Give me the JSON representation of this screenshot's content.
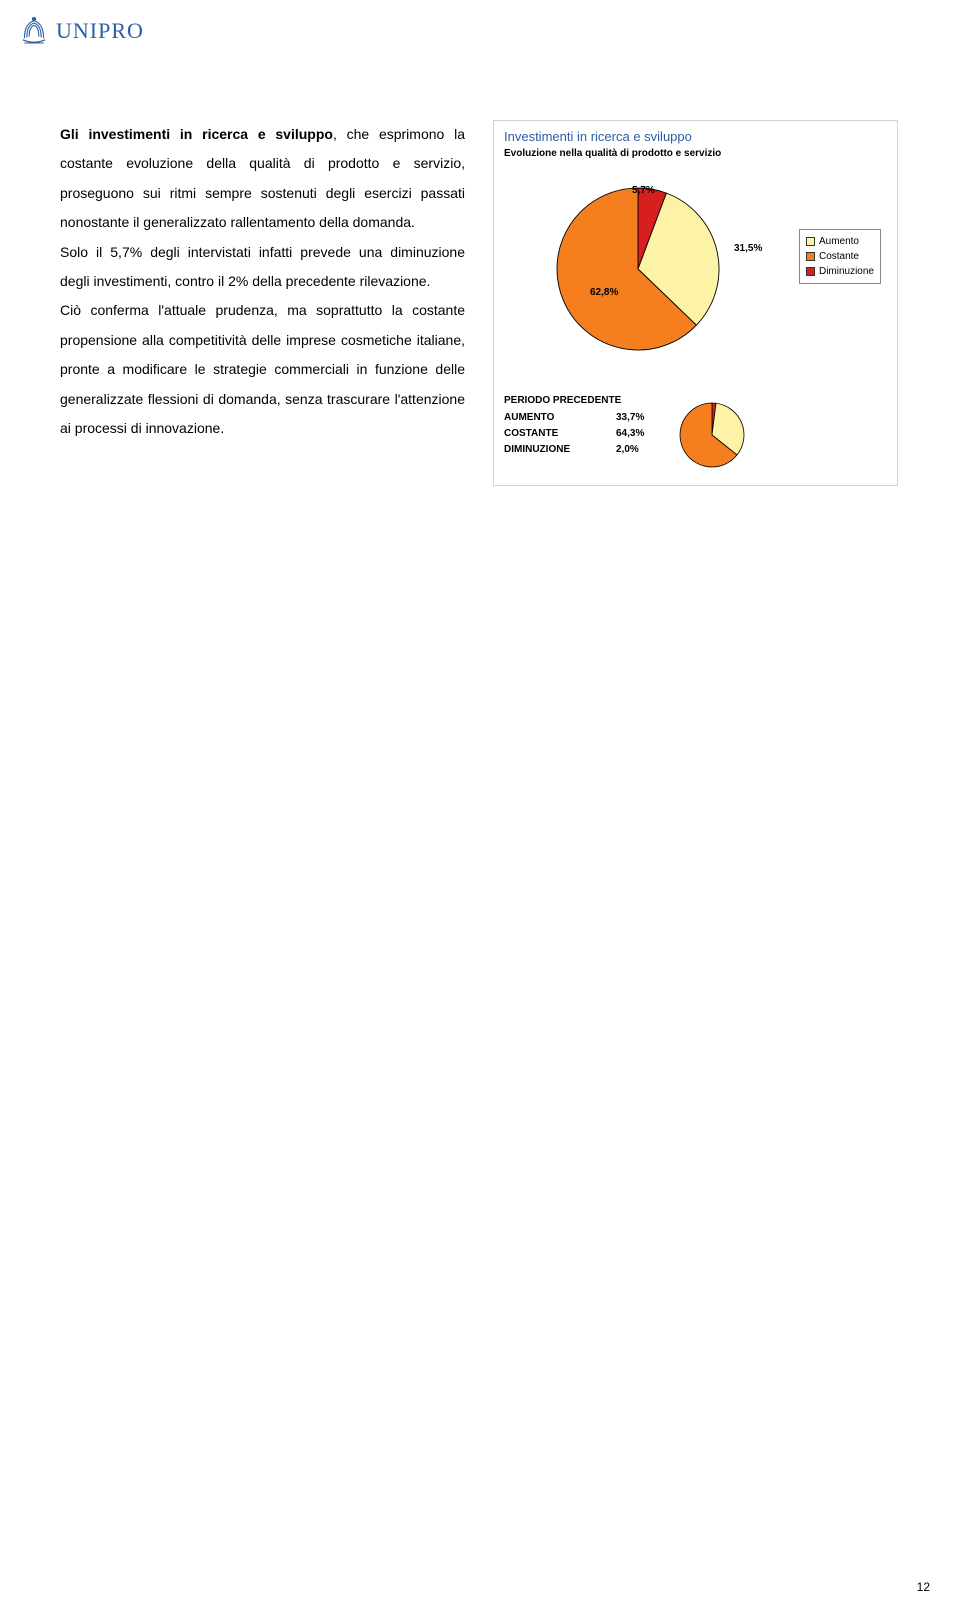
{
  "logo": {
    "text": "UNIPRO",
    "color": "#2b5da7"
  },
  "body_text": {
    "p1_bold": "Gli investimenti in ricerca e sviluppo",
    "p1_rest": ", che esprimono la costante evoluzione della qualità di prodotto e servizio, proseguono sui ritmi sempre sostenuti degli esercizi passati nonostante il generalizzato rallentamento della domanda.",
    "p2": "Solo il 5,7% degli intervistati infatti prevede una diminuzione degli investimenti, contro il 2% della precedente rilevazione.",
    "p3": "Ciò conferma l'attuale prudenza, ma soprattutto la costante propensione alla competitività delle imprese cosmetiche italiane, pronte a modificare le strategie commerciali in funzione delle generalizzate flessioni di domanda, senza trascurare l'attenzione ai processi di innovazione."
  },
  "chart": {
    "title": "Investimenti in ricerca e sviluppo",
    "subtitle": "Evoluzione nella qualità di prodotto e servizio",
    "title_color": "#2b5da7",
    "pie": {
      "values": [
        31.5,
        62.8,
        5.7
      ],
      "labels": [
        "31,5%",
        "62,8%",
        "5,7%"
      ],
      "colors": [
        "#fdf3a6",
        "#f57e1f",
        "#d81f1f"
      ],
      "border_color": "#000000",
      "label_fontsize": 10
    },
    "legend": {
      "items": [
        {
          "label": "Aumento",
          "color": "#fdf3a6"
        },
        {
          "label": "Costante",
          "color": "#f57e1f"
        },
        {
          "label": "Diminuzione",
          "color": "#d81f1f"
        }
      ]
    },
    "prev": {
      "header": "PERIODO PRECEDENTE",
      "rows": [
        {
          "label": "AUMENTO",
          "val": "33,7%"
        },
        {
          "label": "COSTANTE",
          "val": "64,3%"
        },
        {
          "label": "DIMINUZIONE",
          "val": "2,0%"
        }
      ],
      "mini_pie": {
        "values": [
          33.7,
          64.3,
          2.0
        ],
        "colors": [
          "#fdf3a6",
          "#f57e1f",
          "#d81f1f"
        ]
      }
    },
    "box_border": "#d7d2c5"
  },
  "page_number": "12"
}
